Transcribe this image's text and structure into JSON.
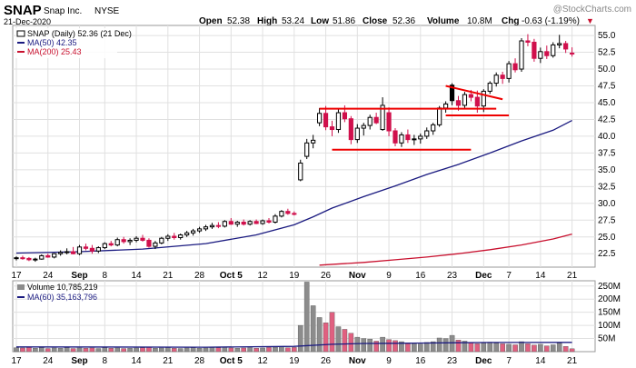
{
  "header": {
    "symbol": "SNAP",
    "company": "Snap Inc.",
    "exchange": "NYSE",
    "date": "21-Dec-2020",
    "watermark": "@StockCharts.com",
    "ohlc": {
      "open_label": "Open",
      "open": "52.38",
      "high_label": "High",
      "high": "53.24",
      "low_label": "Low",
      "low": "51.86",
      "close_label": "Close",
      "close": "52.36",
      "volume_label": "Volume",
      "volume": "10.8M",
      "chg_label": "Chg",
      "chg": "-0.63 (-1.19%)",
      "chg_marker": "▼"
    }
  },
  "legend": {
    "price": "SNAP (Daily) 52.36 (21 Dec)",
    "ma50": "MA(50) 42.35",
    "ma200": "MA(200) 25.43",
    "volume": "Volume 10,785,219",
    "ma60": "MA(60) 35,163,796"
  },
  "colors": {
    "up": "#ffffff",
    "down": "#d0104c",
    "blackCandle": "#000000",
    "ma50": "#1a1a80",
    "ma200": "#c8102e",
    "volUp": "#8c8c8c",
    "volDown": "#e06080",
    "trend": "#ee0000",
    "grid": "#e0e0e0"
  },
  "chart_data": [
    {
      "type": "candlestick",
      "title": "SNAP (Daily) 52.36 (21 Dec)",
      "ylim": [
        20.5,
        56.5
      ],
      "y_ticks": [
        22.5,
        25.0,
        27.5,
        30.0,
        32.5,
        35.0,
        37.5,
        40.0,
        42.5,
        45.0,
        47.5,
        50.0,
        52.5,
        55.0
      ],
      "x_ticks": [
        {
          "label": "17",
          "i": 0
        },
        {
          "label": "24",
          "i": 5
        },
        {
          "label": "Sep",
          "i": 10,
          "bold": true
        },
        {
          "label": "8",
          "i": 14
        },
        {
          "label": "14",
          "i": 19
        },
        {
          "label": "21",
          "i": 24
        },
        {
          "label": "28",
          "i": 29
        },
        {
          "label": "Oct 5",
          "i": 34,
          "bold": true
        },
        {
          "label": "12",
          "i": 39
        },
        {
          "label": "19",
          "i": 44
        },
        {
          "label": "26",
          "i": 49
        },
        {
          "label": "Nov",
          "i": 54,
          "bold": true
        },
        {
          "label": "9",
          "i": 59
        },
        {
          "label": "16",
          "i": 64
        },
        {
          "label": "23",
          "i": 69
        },
        {
          "label": "Dec",
          "i": 74,
          "bold": true
        },
        {
          "label": "7",
          "i": 78
        },
        {
          "label": "14",
          "i": 83
        },
        {
          "label": "21",
          "i": 88
        }
      ],
      "ohlc": [
        [
          21.8,
          22.1,
          21.5,
          21.9
        ],
        [
          21.9,
          22.2,
          21.6,
          21.8
        ],
        [
          21.8,
          22.0,
          21.4,
          21.6
        ],
        [
          21.6,
          21.9,
          21.3,
          21.7
        ],
        [
          21.7,
          22.4,
          21.6,
          22.2
        ],
        [
          22.2,
          22.5,
          21.9,
          22.0
        ],
        [
          22.0,
          22.6,
          21.8,
          22.5
        ],
        [
          22.5,
          23.0,
          22.2,
          22.7
        ],
        [
          22.7,
          23.3,
          22.4,
          22.8
        ],
        [
          22.8,
          23.5,
          22.4,
          22.5
        ],
        [
          22.5,
          23.8,
          22.3,
          23.5
        ],
        [
          23.5,
          24.0,
          23.0,
          23.3
        ],
        [
          23.3,
          23.8,
          22.5,
          22.9
        ],
        [
          22.9,
          23.6,
          22.6,
          23.4
        ],
        [
          23.4,
          24.2,
          23.2,
          24.0
        ],
        [
          24.0,
          24.4,
          23.6,
          23.8
        ],
        [
          23.8,
          24.9,
          23.6,
          24.6
        ],
        [
          24.6,
          25.0,
          24.0,
          24.3
        ],
        [
          24.3,
          24.8,
          23.8,
          24.5
        ],
        [
          24.5,
          25.1,
          24.2,
          24.8
        ],
        [
          24.8,
          25.3,
          24.3,
          24.5
        ],
        [
          24.5,
          24.8,
          23.4,
          23.6
        ],
        [
          23.6,
          24.4,
          23.2,
          24.1
        ],
        [
          24.1,
          25.0,
          23.9,
          24.8
        ],
        [
          24.8,
          25.4,
          24.4,
          25.1
        ],
        [
          25.1,
          25.6,
          24.6,
          24.9
        ],
        [
          24.9,
          25.5,
          24.6,
          25.3
        ],
        [
          25.3,
          25.9,
          25.0,
          25.6
        ],
        [
          25.6,
          26.2,
          25.2,
          25.9
        ],
        [
          25.9,
          26.5,
          25.6,
          26.2
        ],
        [
          26.2,
          26.8,
          25.9,
          26.5
        ],
        [
          26.5,
          27.1,
          26.2,
          26.7
        ],
        [
          26.7,
          27.2,
          26.3,
          26.6
        ],
        [
          26.6,
          27.5,
          26.4,
          27.3
        ],
        [
          27.3,
          27.8,
          26.8,
          26.9
        ],
        [
          26.9,
          27.4,
          26.5,
          27.2
        ],
        [
          27.2,
          27.6,
          26.7,
          26.9
        ],
        [
          26.9,
          27.5,
          26.7,
          27.3
        ],
        [
          27.3,
          27.6,
          26.9,
          27.0
        ],
        [
          27.0,
          27.6,
          26.8,
          27.4
        ],
        [
          27.4,
          27.8,
          27.0,
          27.2
        ],
        [
          27.2,
          28.4,
          27.0,
          28.1
        ],
        [
          28.1,
          29.0,
          27.9,
          28.8
        ],
        [
          28.8,
          29.2,
          28.3,
          28.5
        ],
        [
          28.5,
          28.8,
          28.2,
          28.4
        ],
        [
          33.5,
          36.5,
          33.3,
          36.0
        ],
        [
          37.0,
          39.6,
          36.6,
          39.0
        ],
        [
          39.0,
          40.2,
          38.2,
          39.4
        ],
        [
          42.0,
          44.2,
          41.5,
          43.4
        ],
        [
          43.4,
          44.5,
          40.9,
          41.4
        ],
        [
          41.4,
          42.3,
          40.0,
          41.0
        ],
        [
          41.0,
          44.0,
          40.5,
          43.5
        ],
        [
          43.5,
          44.6,
          42.1,
          42.6
        ],
        [
          42.6,
          43.0,
          38.8,
          39.5
        ],
        [
          39.5,
          41.8,
          39.0,
          41.2
        ],
        [
          41.2,
          42.0,
          40.1,
          41.6
        ],
        [
          41.6,
          43.2,
          41.0,
          42.8
        ],
        [
          42.8,
          43.5,
          41.8,
          42.0
        ],
        [
          41.0,
          45.8,
          40.8,
          44.6
        ],
        [
          43.5,
          44.3,
          40.0,
          40.8
        ],
        [
          40.8,
          41.2,
          38.5,
          39.0
        ],
        [
          39.0,
          40.6,
          38.4,
          40.2
        ],
        [
          40.2,
          41.0,
          39.0,
          39.5
        ],
        [
          39.5,
          40.2,
          38.7,
          39.6
        ],
        [
          39.6,
          40.4,
          38.9,
          40.0
        ],
        [
          40.0,
          41.3,
          39.6,
          40.8
        ],
        [
          40.8,
          42.0,
          40.2,
          41.7
        ],
        [
          41.7,
          44.5,
          41.4,
          44.2
        ],
        [
          44.2,
          45.2,
          43.5,
          44.8
        ],
        [
          47.6,
          47.9,
          44.6,
          45.3
        ],
        [
          45.3,
          46.0,
          43.8,
          44.6
        ],
        [
          44.6,
          46.6,
          44.2,
          46.2
        ],
        [
          46.2,
          46.9,
          45.2,
          45.8
        ],
        [
          45.8,
          46.8,
          43.5,
          44.5
        ],
        [
          44.5,
          47.0,
          43.6,
          46.7
        ],
        [
          46.7,
          48.2,
          46.3,
          47.9
        ],
        [
          47.9,
          49.5,
          47.4,
          49.1
        ],
        [
          49.1,
          49.6,
          47.8,
          48.6
        ],
        [
          48.6,
          51.2,
          48.0,
          50.8
        ],
        [
          50.8,
          51.6,
          49.5,
          49.9
        ],
        [
          50.0,
          54.6,
          49.6,
          54.2
        ],
        [
          54.2,
          55.2,
          53.4,
          54.0
        ],
        [
          54.0,
          54.5,
          51.1,
          51.6
        ],
        [
          51.6,
          53.2,
          50.9,
          52.6
        ],
        [
          52.6,
          53.5,
          51.5,
          52.0
        ],
        [
          52.0,
          54.0,
          51.7,
          53.6
        ],
        [
          53.6,
          55.1,
          53.1,
          53.8
        ],
        [
          53.8,
          54.2,
          52.4,
          52.99
        ],
        [
          52.38,
          53.24,
          51.86,
          52.36
        ]
      ],
      "series": [
        {
          "name": "MA(50) 42.35",
          "points": [
            [
              0,
              22.6
            ],
            [
              10,
              22.8
            ],
            [
              20,
              23.2
            ],
            [
              30,
              24.0
            ],
            [
              38,
              25.3
            ],
            [
              44,
              26.8
            ],
            [
              47,
              28.0
            ],
            [
              50,
              29.3
            ],
            [
              55,
              31.0
            ],
            [
              60,
              32.6
            ],
            [
              65,
              34.3
            ],
            [
              70,
              35.8
            ],
            [
              75,
              37.5
            ],
            [
              80,
              39.3
            ],
            [
              85,
              40.9
            ],
            [
              88,
              42.35
            ]
          ]
        },
        {
          "name": "MA(200) 25.43",
          "points": [
            [
              48,
              20.8
            ],
            [
              55,
              21.2
            ],
            [
              60,
              21.6
            ],
            [
              65,
              22.0
            ],
            [
              70,
              22.5
            ],
            [
              75,
              23.1
            ],
            [
              80,
              23.8
            ],
            [
              85,
              24.7
            ],
            [
              88,
              25.43
            ]
          ]
        }
      ],
      "trendlines": [
        {
          "from": [
            48,
            44.1
          ],
          "to": [
            76,
            44.1
          ]
        },
        {
          "from": [
            50,
            38.0
          ],
          "to": [
            72,
            38.0
          ]
        },
        {
          "from": [
            68,
            43.1
          ],
          "to": [
            78,
            43.1
          ]
        },
        {
          "from": [
            68,
            47.5
          ],
          "to": [
            77,
            45.5
          ]
        }
      ]
    },
    {
      "type": "bar",
      "title": "Volume 10,785,219",
      "ylim": [
        0,
        270
      ],
      "y_ticks": [
        {
          "v": 50,
          "label": "50M"
        },
        {
          "v": 100,
          "label": "100M"
        },
        {
          "v": 150,
          "label": "150M"
        },
        {
          "v": 200,
          "label": "200M"
        },
        {
          "v": 250,
          "label": "250M"
        }
      ],
      "values_millions": [
        15,
        14,
        16,
        13,
        15,
        12,
        14,
        13,
        15,
        12,
        14,
        13,
        14,
        12,
        15,
        13,
        14,
        12,
        13,
        14,
        15,
        17,
        13,
        14,
        16,
        13,
        12,
        14,
        15,
        13,
        14,
        16,
        15,
        17,
        14,
        13,
        14,
        15,
        13,
        14,
        16,
        17,
        18,
        15,
        16,
        100,
        265,
        175,
        130,
        110,
        150,
        95,
        85,
        70,
        55,
        50,
        48,
        40,
        55,
        46,
        42,
        38,
        30,
        32,
        29,
        35,
        38,
        52,
        50,
        62,
        44,
        40,
        35,
        30,
        33,
        36,
        32,
        30,
        28,
        26,
        38,
        30,
        25,
        28,
        22,
        26,
        32,
        20,
        11
      ],
      "ma60_points": [
        [
          0,
          18
        ],
        [
          30,
          17
        ],
        [
          44,
          20
        ],
        [
          50,
          28
        ],
        [
          55,
          31
        ],
        [
          60,
          32
        ],
        [
          65,
          33
        ],
        [
          70,
          34
        ],
        [
          75,
          35
        ],
        [
          80,
          35
        ],
        [
          88,
          35.2
        ]
      ]
    }
  ]
}
